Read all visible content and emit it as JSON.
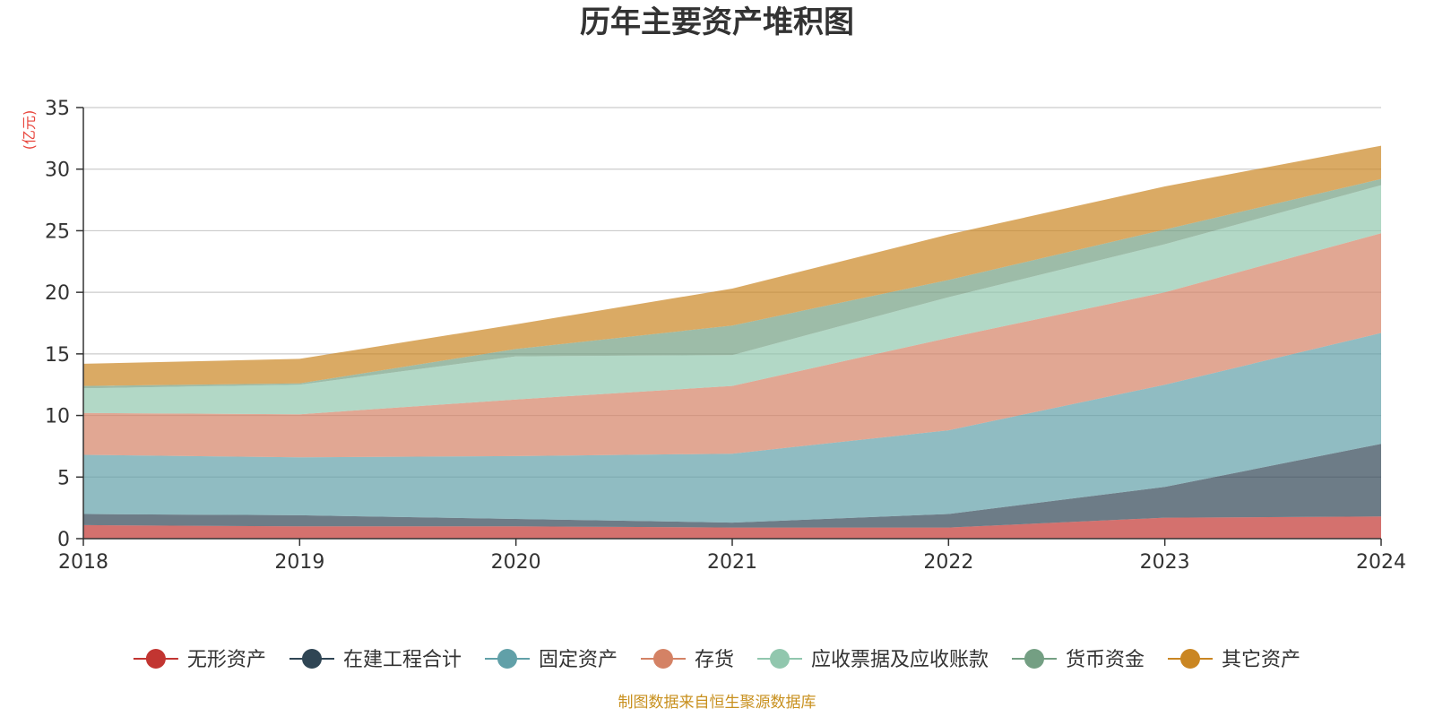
{
  "chart_data": {
    "type": "area",
    "stacked": true,
    "title": "历年主要资产堆积图",
    "ylabel": "(亿元)",
    "xlabel": "",
    "x": [
      "2018",
      "2019",
      "2020",
      "2021",
      "2022",
      "2023",
      "2024"
    ],
    "ylim": [
      0,
      35
    ],
    "yticks": [
      0,
      5,
      10,
      15,
      20,
      25,
      30,
      35
    ],
    "grid": true,
    "legend_position": "bottom",
    "series": [
      {
        "name": "无形资产",
        "color": "#c23531",
        "values": [
          1.1,
          1.0,
          1.0,
          0.9,
          0.9,
          1.7,
          1.8
        ]
      },
      {
        "name": "在建工程合计",
        "color": "#2f4554",
        "values": [
          0.9,
          0.9,
          0.6,
          0.4,
          1.1,
          2.5,
          5.9
        ]
      },
      {
        "name": "固定资产",
        "color": "#61a0a8",
        "values": [
          4.8,
          4.7,
          5.1,
          5.6,
          6.8,
          8.3,
          9.0
        ]
      },
      {
        "name": "存货",
        "color": "#d48265",
        "values": [
          3.4,
          3.5,
          4.6,
          5.5,
          7.5,
          7.5,
          8.1
        ]
      },
      {
        "name": "应收票据及应收账款",
        "color": "#91c7ae",
        "values": [
          2.0,
          2.4,
          3.5,
          2.5,
          3.3,
          3.9,
          3.9
        ]
      },
      {
        "name": "货币资金",
        "color": "#749f83",
        "values": [
          0.2,
          0.1,
          0.6,
          2.4,
          1.4,
          1.2,
          0.5
        ]
      },
      {
        "name": "其它资产",
        "color": "#ca8622",
        "values": [
          1.8,
          2.0,
          2.0,
          3.0,
          3.7,
          3.5,
          2.7
        ]
      }
    ]
  },
  "footer": {
    "source": "制图数据来自恒生聚源数据库"
  }
}
